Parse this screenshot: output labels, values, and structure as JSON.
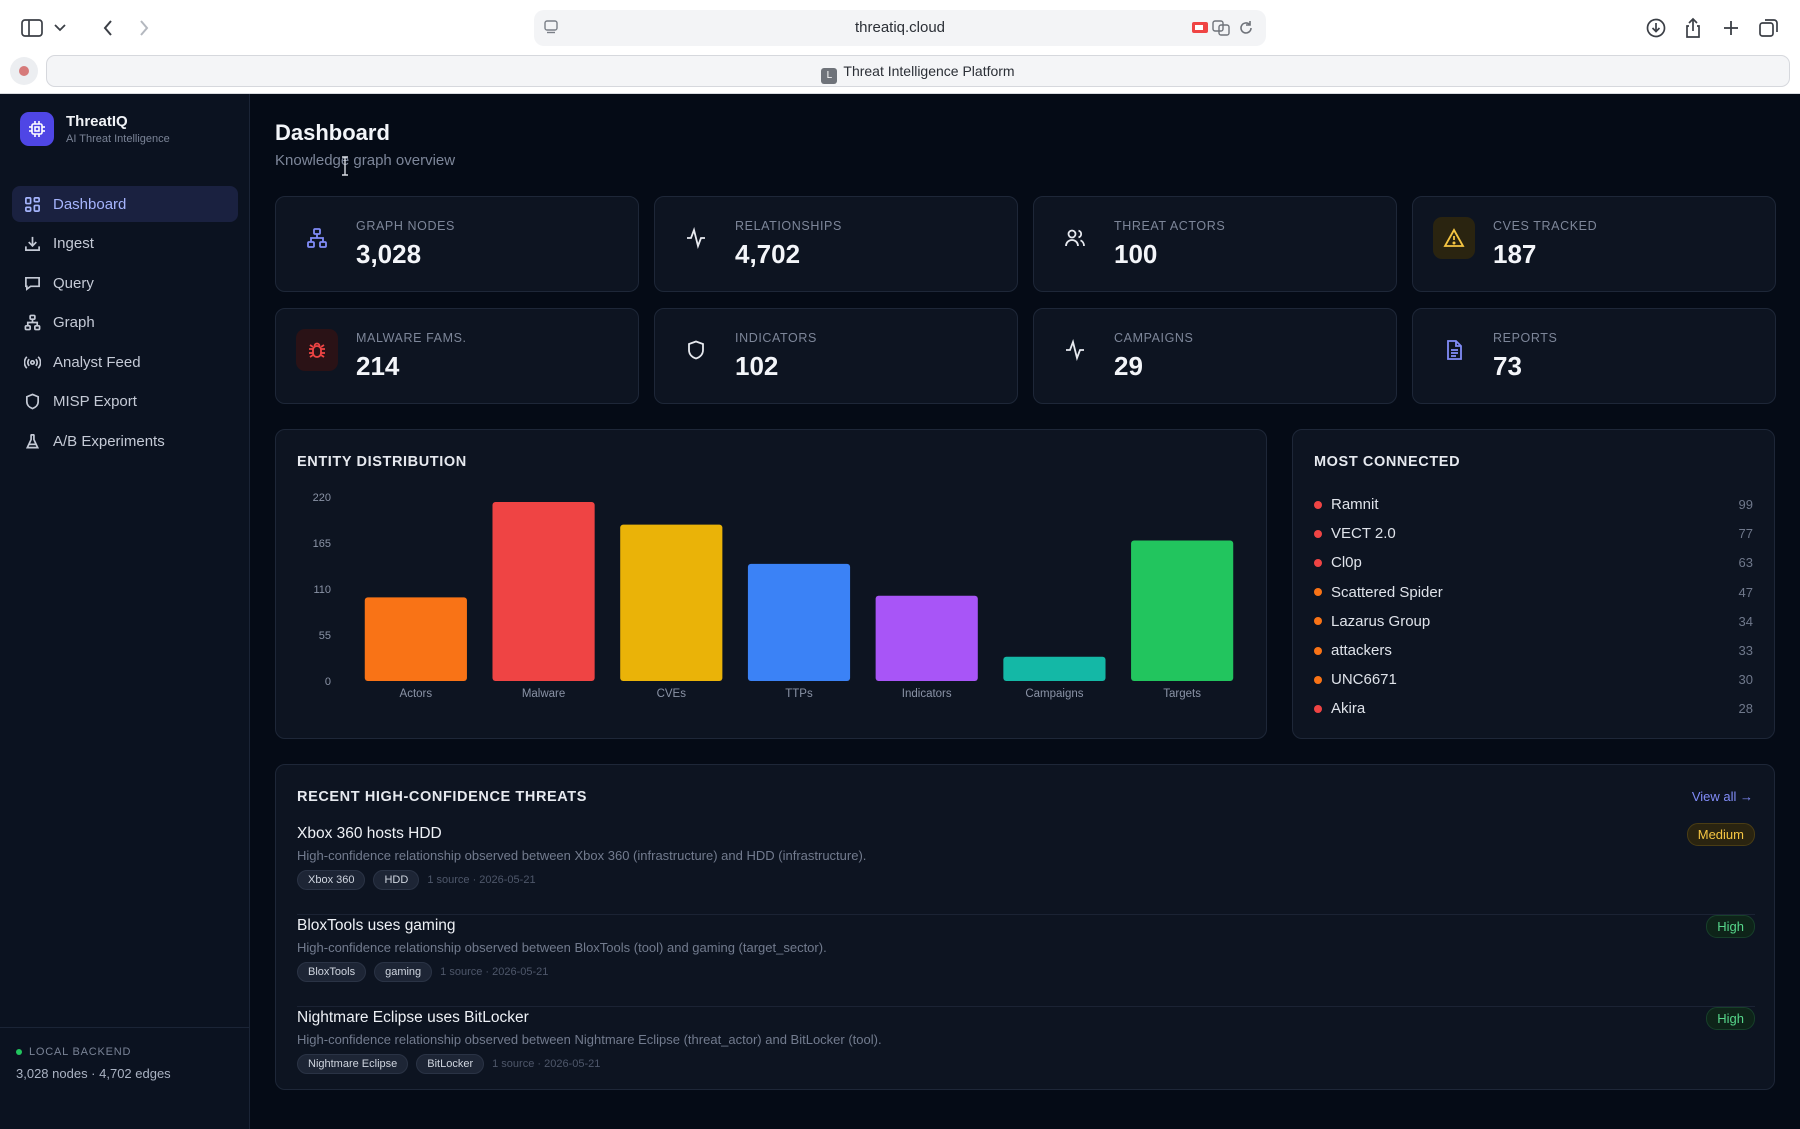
{
  "browser": {
    "url": "threatiq.cloud",
    "tab_title": "Threat Intelligence Platform",
    "tab_favicon_letter": "L"
  },
  "brand": {
    "title": "ThreatIQ",
    "subtitle": "AI Threat Intelligence"
  },
  "nav": [
    {
      "label": "Dashboard",
      "icon": "grid-icon",
      "active": true
    },
    {
      "label": "Ingest",
      "icon": "download-icon"
    },
    {
      "label": "Query",
      "icon": "chat-icon"
    },
    {
      "label": "Graph",
      "icon": "network-icon"
    },
    {
      "label": "Analyst Feed",
      "icon": "radio-icon"
    },
    {
      "label": "MISP Export",
      "icon": "shield-icon"
    },
    {
      "label": "A/B Experiments",
      "icon": "flask-icon"
    }
  ],
  "backend": {
    "label": "LOCAL BACKEND",
    "stats": "3,028 nodes · 4,702 edges"
  },
  "page": {
    "title": "Dashboard",
    "subtitle": "Knowledge graph overview"
  },
  "stats": [
    {
      "label": "GRAPH NODES",
      "value": "3,028",
      "icon": "network-icon",
      "color": "#818cf8"
    },
    {
      "label": "RELATIONSHIPS",
      "value": "4,702",
      "icon": "activity-icon",
      "color": "#e6e9ef"
    },
    {
      "label": "THREAT ACTORS",
      "value": "100",
      "icon": "users-icon",
      "color": "#e6e9ef"
    },
    {
      "label": "CVES TRACKED",
      "value": "187",
      "icon": "warning-icon",
      "color": "#f5c542"
    },
    {
      "label": "MALWARE FAMS.",
      "value": "214",
      "icon": "bug-icon",
      "color": "#ef4444"
    },
    {
      "label": "INDICATORS",
      "value": "102",
      "icon": "shield-icon",
      "color": "#e6e9ef"
    },
    {
      "label": "CAMPAIGNS",
      "value": "29",
      "icon": "activity-icon",
      "color": "#e6e9ef"
    },
    {
      "label": "REPORTS",
      "value": "73",
      "icon": "document-icon",
      "color": "#818cf8"
    }
  ],
  "entity_panel": {
    "title": "ENTITY DISTRIBUTION"
  },
  "chart_data": {
    "type": "bar",
    "categories": [
      "Actors",
      "Malware",
      "CVEs",
      "TTPs",
      "Indicators",
      "Campaigns",
      "Targets"
    ],
    "values": [
      100,
      214,
      187,
      140,
      102,
      29,
      168
    ],
    "colors": [
      "#f97316",
      "#ef4444",
      "#eab308",
      "#3b82f6",
      "#a855f7",
      "#14b8a6",
      "#22c55e"
    ],
    "yticks": [
      0,
      55,
      110,
      165,
      220
    ],
    "ylim": [
      0,
      220
    ],
    "grid": false
  },
  "most_connected": {
    "title": "MOST CONNECTED",
    "items": [
      {
        "name": "Ramnit",
        "count": "99",
        "color": "#ef4444"
      },
      {
        "name": "VECT 2.0",
        "count": "77",
        "color": "#ef4444"
      },
      {
        "name": "Cl0p",
        "count": "63",
        "color": "#ef4444"
      },
      {
        "name": "Scattered Spider",
        "count": "47",
        "color": "#f97316"
      },
      {
        "name": "Lazarus Group",
        "count": "34",
        "color": "#f97316"
      },
      {
        "name": "attackers",
        "count": "33",
        "color": "#f97316"
      },
      {
        "name": "UNC6671",
        "count": "30",
        "color": "#f97316"
      },
      {
        "name": "Akira",
        "count": "28",
        "color": "#ef4444"
      }
    ]
  },
  "recent_threats": {
    "title": "RECENT HIGH-CONFIDENCE THREATS",
    "view_all": "View all →",
    "items": [
      {
        "title": "Xbox 360 hosts HDD",
        "description": "High-confidence relationship observed between Xbox 360 (infrastructure) and HDD (infrastructure).",
        "tags": [
          "Xbox 360",
          "HDD"
        ],
        "meta": "1 source · 2026-05-21",
        "severity": "Medium"
      },
      {
        "title": "BloxTools uses gaming",
        "description": "High-confidence relationship observed between BloxTools (tool) and gaming (target_sector).",
        "tags": [
          "BloxTools",
          "gaming"
        ],
        "meta": "1 source · 2026-05-21",
        "severity": "High"
      },
      {
        "title": "Nightmare Eclipse uses BitLocker",
        "description": "High-confidence relationship observed between Nightmare Eclipse (threat_actor) and BitLocker (tool).",
        "tags": [
          "Nightmare Eclipse",
          "BitLocker"
        ],
        "meta": "1 source · 2026-05-21",
        "severity": "High"
      }
    ]
  }
}
